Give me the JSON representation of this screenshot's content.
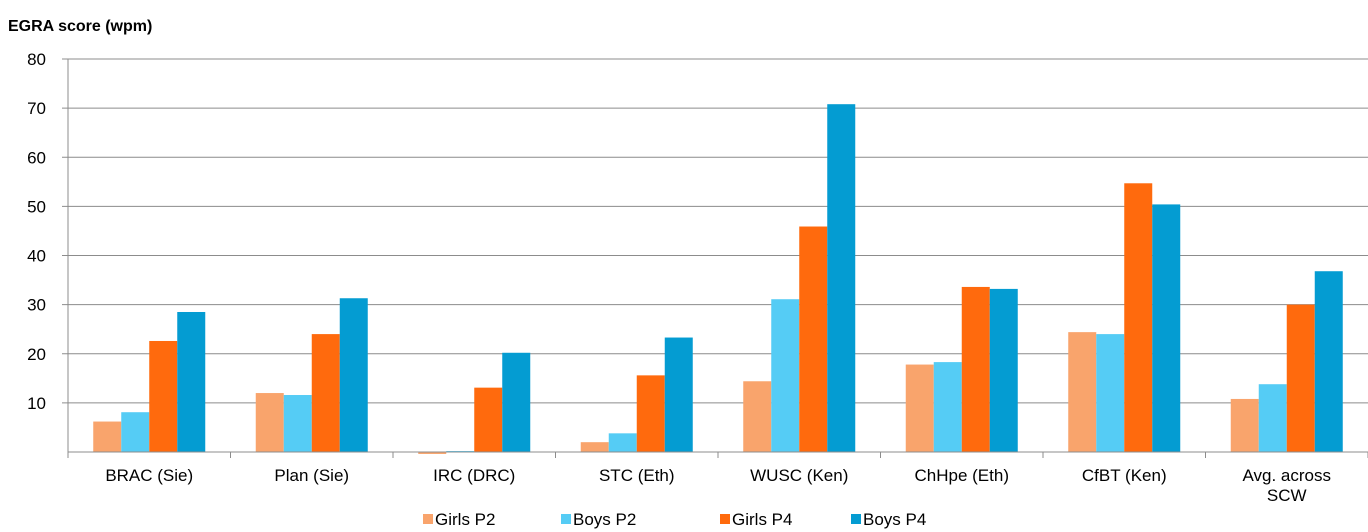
{
  "chart_data": {
    "type": "bar",
    "title": "EGRA score (wpm)",
    "ylim": [
      0,
      80
    ],
    "yticks": [
      10,
      20,
      30,
      40,
      50,
      60,
      70,
      80
    ],
    "grid": true,
    "legend_position": "bottom",
    "categories": [
      [
        "BRAC (Sie)"
      ],
      [
        "Plan (Sie)"
      ],
      [
        "IRC (DRC)"
      ],
      [
        "STC (Eth)"
      ],
      [
        "WUSC (Ken)"
      ],
      [
        "ChHpe (Eth)"
      ],
      [
        "CfBT (Ken)"
      ],
      [
        "Avg. across",
        "SCW"
      ]
    ],
    "series": [
      {
        "name": "Girls P2",
        "color": "#F9A46C",
        "values": [
          6.2,
          12.0,
          -0.4,
          2.0,
          14.4,
          17.8,
          24.4,
          10.8
        ]
      },
      {
        "name": "Boys P2",
        "color": "#55CCF5",
        "values": [
          8.1,
          11.6,
          0.2,
          3.8,
          31.1,
          18.3,
          24.0,
          13.8
        ]
      },
      {
        "name": "Girls P4",
        "color": "#FF6A0D",
        "values": [
          22.6,
          24.0,
          13.1,
          15.6,
          45.9,
          33.6,
          54.7,
          30.0
        ]
      },
      {
        "name": "Boys P4",
        "color": "#049CD2",
        "values": [
          28.5,
          31.3,
          20.2,
          23.3,
          70.8,
          33.2,
          50.4,
          36.8
        ]
      }
    ]
  }
}
